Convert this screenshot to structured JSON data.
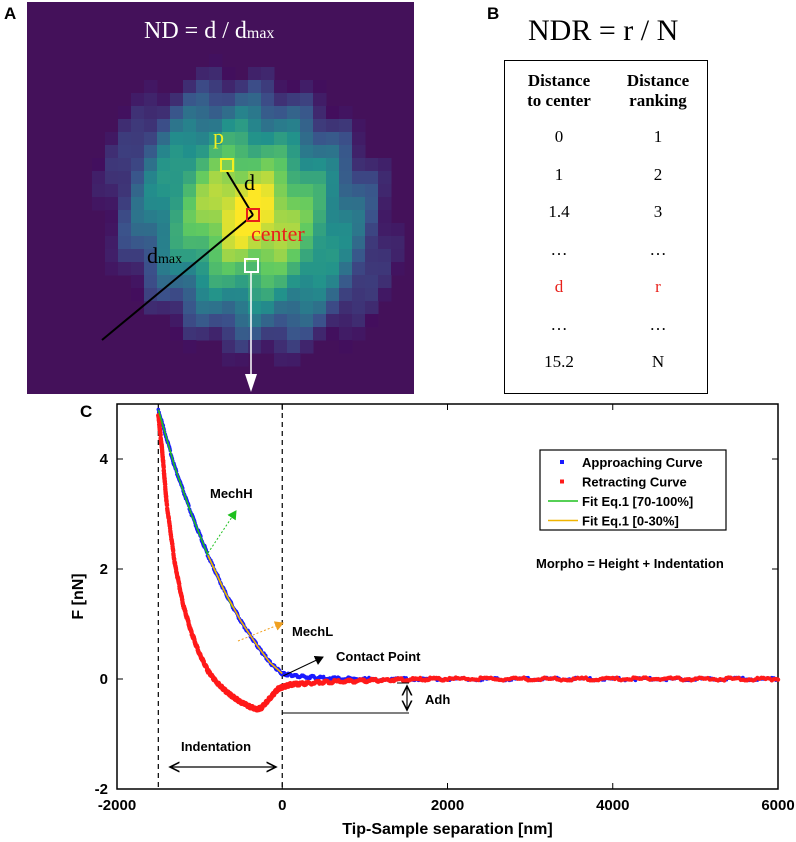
{
  "panel_a": {
    "letter": "A",
    "formula": "ND = d / d",
    "formula_sub": "max",
    "label_p": "p",
    "label_d": "d",
    "label_center": "center",
    "label_dmax": "d",
    "label_dmax_sub": "max"
  },
  "panel_b": {
    "letter": "B",
    "formula": "NDR = r / N",
    "header_col1_line1": "Distance",
    "header_col1_line2": "to center",
    "header_col2_line1": "Distance",
    "header_col2_line2": "ranking",
    "rows": [
      {
        "distance": "0",
        "rank": "1",
        "highlight": false
      },
      {
        "distance": "1",
        "rank": "2",
        "highlight": false
      },
      {
        "distance": "1.4",
        "rank": "3",
        "highlight": false
      },
      {
        "distance": "…",
        "rank": "…",
        "highlight": false
      },
      {
        "distance": "d",
        "rank": "r",
        "highlight": true
      },
      {
        "distance": "…",
        "rank": "…",
        "highlight": false
      },
      {
        "distance": "15.2",
        "rank": "N",
        "highlight": false
      }
    ],
    "highlight_color": "#e8201a"
  },
  "chart_data": {
    "letter": "C",
    "type": "line",
    "xlabel": "Tip-Sample separation [nm]",
    "ylabel": "F [nN]",
    "xlim": [
      -2000,
      6000
    ],
    "ylim": [
      -2,
      5
    ],
    "xticks": [
      -2000,
      0,
      2000,
      4000,
      6000
    ],
    "yticks": [
      -2,
      0,
      2,
      4
    ],
    "legend_position": "top-right",
    "series": [
      {
        "name": "Approaching Curve",
        "color": "#1a1aff",
        "marker": "dot",
        "x": [
          -1500,
          -1300,
          -1100,
          -900,
          -700,
          -500,
          -300,
          -150,
          0,
          200,
          500,
          1000,
          2000,
          3000,
          4000,
          5000,
          6000
        ],
        "y": [
          4.9,
          3.85,
          3.0,
          2.25,
          1.6,
          1.05,
          0.6,
          0.3,
          0.1,
          0.05,
          0.02,
          0.0,
          0.0,
          0.0,
          0.0,
          0.0,
          0.0
        ]
      },
      {
        "name": "Retracting Curve",
        "color": "#ff1a1a",
        "marker": "dot",
        "x": [
          -1500,
          -1450,
          -1400,
          -1300,
          -1200,
          -1100,
          -1000,
          -900,
          -800,
          -700,
          -600,
          -500,
          -400,
          -300,
          -250,
          -150,
          -50,
          0,
          100,
          300,
          600,
          1000,
          1400,
          2000,
          3000,
          4000,
          5000,
          6000
        ],
        "y": [
          4.8,
          4.1,
          3.2,
          2.1,
          1.35,
          0.85,
          0.45,
          0.15,
          -0.05,
          -0.2,
          -0.32,
          -0.42,
          -0.5,
          -0.55,
          -0.52,
          -0.35,
          -0.18,
          -0.15,
          -0.1,
          -0.08,
          -0.05,
          -0.03,
          -0.01,
          0.0,
          0.0,
          0.0,
          0.0,
          0.0
        ]
      },
      {
        "name": "Fit Eq.1 [70-100%]",
        "color": "#1ec01e",
        "marker": "line",
        "x": [
          -1500,
          -1300,
          -1100,
          -900,
          -700,
          -600
        ],
        "y": [
          4.9,
          3.85,
          3.0,
          2.25,
          1.6,
          1.3
        ]
      },
      {
        "name": "Fit Eq.1 [0-30%]",
        "color": "#f0b400",
        "marker": "line",
        "x": [
          -900,
          -700,
          -500,
          -300,
          -150,
          0
        ],
        "y": [
          2.25,
          1.6,
          1.05,
          0.6,
          0.3,
          0.1
        ]
      }
    ],
    "vlines": [
      -1500,
      0
    ],
    "annotations": {
      "mechH": "MechH",
      "mechL": "MechL",
      "contact_point": "Contact Point",
      "morpho": "Morpho = Height + Indentation",
      "adh": "Adh",
      "indentation": "Indentation"
    },
    "annotation_colors": {
      "mechH": "#1ec01e",
      "mechL": "#f0a020",
      "contact": "#000000"
    }
  }
}
